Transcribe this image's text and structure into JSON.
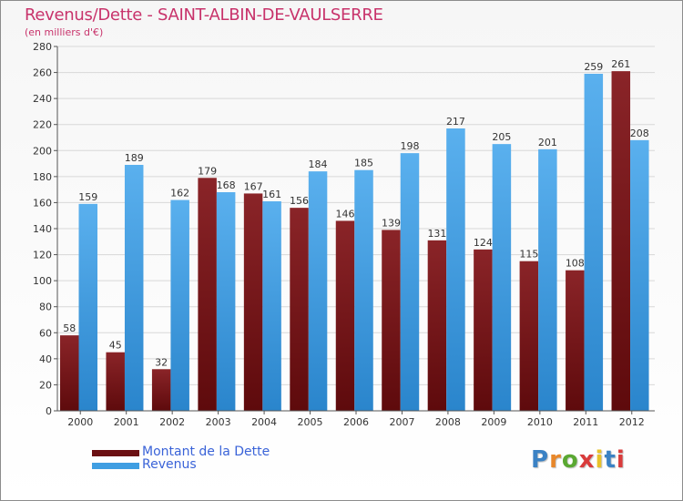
{
  "chart_data": {
    "type": "bar",
    "title": "Revenus/Dette - SAINT-ALBIN-DE-VAULSERRE",
    "subtitle": "(en milliers d'€)",
    "categories": [
      "2000",
      "2001",
      "2002",
      "2003",
      "2004",
      "2005",
      "2006",
      "2007",
      "2008",
      "2009",
      "2010",
      "2011",
      "2012"
    ],
    "series": [
      {
        "name": "Montant de la Dette",
        "color": "#7a1518",
        "values": [
          58,
          45,
          32,
          179,
          167,
          156,
          146,
          139,
          131,
          124,
          115,
          108,
          261
        ]
      },
      {
        "name": "Revenus",
        "color": "#3f9ee2",
        "values": [
          159,
          189,
          162,
          168,
          161,
          184,
          185,
          198,
          217,
          205,
          201,
          259,
          208
        ]
      }
    ],
    "ylim": [
      0,
      280
    ],
    "yticks": [
      0,
      20,
      40,
      60,
      80,
      100,
      120,
      140,
      160,
      180,
      200,
      220,
      240,
      260,
      280
    ],
    "grid": true,
    "legend_position": "bottom-left"
  },
  "logo_text": [
    "P",
    "r",
    "o",
    "x",
    "i",
    "t",
    "i"
  ]
}
